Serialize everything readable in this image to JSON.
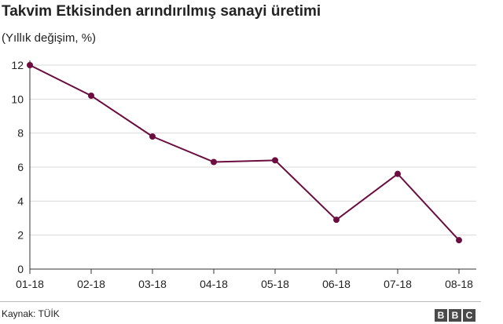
{
  "title": "Takvim Etkisinden arındırılmış sanayi üretimi",
  "subtitle": "(Yıllık değişim, %)",
  "source": "Kaynak: TÜİK",
  "logo": {
    "text": "BBC",
    "letters": [
      "B",
      "B",
      "C"
    ]
  },
  "colors": {
    "line": "#6b0d3e",
    "grid": "#d9d9d9",
    "axis": "#333333",
    "text": "#222222"
  },
  "chart_data": {
    "type": "line",
    "categories": [
      "01-18",
      "02-18",
      "03-18",
      "04-18",
      "05-18",
      "06-18",
      "07-18",
      "08-18"
    ],
    "series": [
      {
        "values": [
          12.0,
          10.2,
          7.8,
          6.3,
          6.4,
          2.9,
          5.6,
          1.7
        ]
      }
    ],
    "ylim": [
      0,
      12
    ],
    "yticks": [
      0,
      2,
      4,
      6,
      8,
      10,
      12
    ],
    "grid": true,
    "markers": true
  }
}
